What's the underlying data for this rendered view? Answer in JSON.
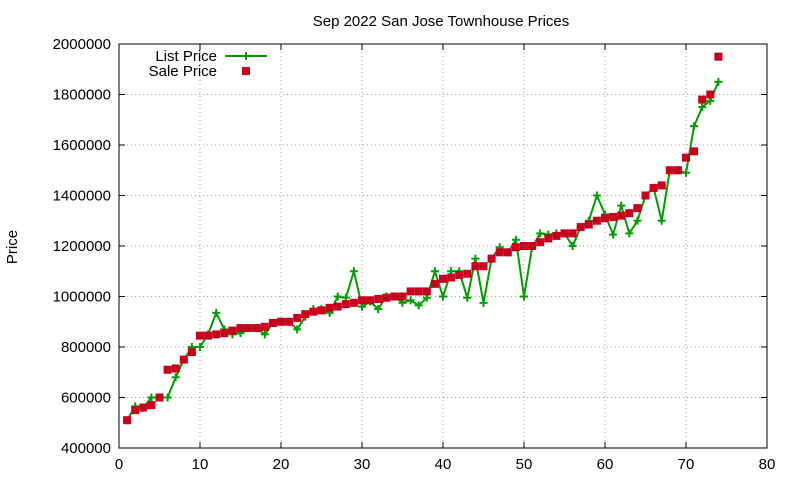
{
  "chart_data": {
    "type": "line",
    "title": "Sep 2022 San Jose Townhouse Prices",
    "xlabel": "",
    "ylabel": "Price",
    "xlim": [
      0,
      80
    ],
    "ylim": [
      400000,
      2000000
    ],
    "x_ticks": [
      0,
      10,
      20,
      30,
      40,
      50,
      60,
      70,
      80
    ],
    "y_ticks": [
      400000,
      600000,
      800000,
      1000000,
      1200000,
      1400000,
      1600000,
      1800000,
      2000000
    ],
    "x_tick_labels": [
      "0",
      "10",
      "20",
      "30",
      "40",
      "50",
      "60",
      "70",
      "80"
    ],
    "y_tick_labels": [
      "400000",
      "600000",
      "800000",
      "1000000",
      "1200000",
      "1400000",
      "1600000",
      "1800000",
      "2000000"
    ],
    "grid": true,
    "legend_position": "top-left",
    "series": [
      {
        "name": "List Price",
        "style": "line-with-plus-markers",
        "color": "#009e00",
        "x": [
          1,
          2,
          3,
          4,
          5,
          6,
          7,
          8,
          9,
          10,
          11,
          12,
          13,
          14,
          15,
          16,
          17,
          18,
          19,
          20,
          21,
          22,
          23,
          24,
          25,
          26,
          27,
          28,
          29,
          30,
          31,
          32,
          33,
          34,
          35,
          36,
          37,
          38,
          39,
          40,
          41,
          42,
          43,
          44,
          45,
          46,
          47,
          48,
          49,
          50,
          51,
          52,
          53,
          54,
          55,
          56,
          57,
          58,
          59,
          60,
          61,
          62,
          63,
          64,
          65,
          66,
          67,
          68,
          69,
          70,
          71,
          72,
          73,
          74
        ],
        "values": [
          510000,
          565000,
          560000,
          600000,
          600000,
          600000,
          680000,
          750000,
          800000,
          800000,
          850000,
          935000,
          870000,
          850000,
          855000,
          875000,
          875000,
          850000,
          895000,
          900000,
          900000,
          870000,
          920000,
          950000,
          950000,
          935000,
          1000000,
          995000,
          1100000,
          960000,
          980000,
          950000,
          1000000,
          1000000,
          975000,
          985000,
          965000,
          995000,
          1100000,
          1000000,
          1100000,
          1100000,
          995000,
          1150000,
          975000,
          1150000,
          1195000,
          1175000,
          1225000,
          1000000,
          1195000,
          1250000,
          1245000,
          1250000,
          1250000,
          1200000,
          1275000,
          1300000,
          1400000,
          1325000,
          1245000,
          1360000,
          1250000,
          1300000,
          1400000,
          1430000,
          1300000,
          1500000,
          1500000,
          1490000,
          1675000,
          1750000,
          1775000,
          1850000
        ]
      },
      {
        "name": "Sale Price",
        "style": "square-markers",
        "color": "#c8001e",
        "x": [
          1,
          2,
          3,
          4,
          5,
          6,
          7,
          8,
          9,
          10,
          11,
          12,
          13,
          14,
          15,
          16,
          17,
          18,
          19,
          20,
          21,
          22,
          23,
          24,
          25,
          26,
          27,
          28,
          29,
          30,
          31,
          32,
          33,
          34,
          35,
          36,
          37,
          38,
          39,
          40,
          41,
          42,
          43,
          44,
          45,
          46,
          47,
          48,
          49,
          50,
          51,
          52,
          53,
          54,
          55,
          56,
          57,
          58,
          59,
          60,
          61,
          62,
          63,
          64,
          65,
          66,
          67,
          68,
          69,
          70,
          71,
          72,
          73,
          74
        ],
        "values": [
          510000,
          550000,
          560000,
          570000,
          600000,
          710000,
          715000,
          750000,
          780000,
          845000,
          845000,
          850000,
          855000,
          865000,
          875000,
          875000,
          875000,
          880000,
          895000,
          900000,
          900000,
          915000,
          930000,
          940000,
          945000,
          955000,
          960000,
          970000,
          975000,
          985000,
          985000,
          990000,
          995000,
          1000000,
          1000000,
          1020000,
          1020000,
          1020000,
          1050000,
          1070000,
          1075000,
          1085000,
          1090000,
          1120000,
          1120000,
          1150000,
          1175000,
          1175000,
          1195000,
          1200000,
          1200000,
          1215000,
          1230000,
          1240000,
          1250000,
          1250000,
          1275000,
          1285000,
          1300000,
          1310000,
          1315000,
          1320000,
          1330000,
          1350000,
          1400000,
          1430000,
          1440000,
          1500000,
          1500000,
          1550000,
          1575000,
          1780000,
          1800000,
          1950000
        ]
      }
    ]
  }
}
